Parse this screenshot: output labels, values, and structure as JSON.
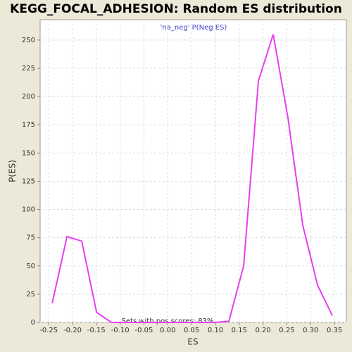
{
  "chart_data": {
    "type": "line",
    "title": "KEGG_FOCAL_ADHESION: Random ES distribution",
    "x_label": "ES",
    "y_label": "P(ES)",
    "annotation": "Sets with pos scores: 83%",
    "x": [
      -0.2426,
      -0.2116,
      -0.1806,
      -0.1495,
      -0.1185,
      -0.0875,
      -0.0565,
      -0.0254,
      0.0056,
      0.0366,
      0.0676,
      0.0987,
      0.1283,
      0.1593,
      0.1904,
      0.2214,
      0.2524,
      0.2835,
      0.3145,
      0.3455
    ],
    "series": [
      {
        "name": "'na_neg' P(Neg ES)",
        "color": "#e83ef0",
        "values": [
          17,
          76,
          72,
          9,
          0,
          0,
          0,
          0,
          0,
          0,
          0,
          0,
          1,
          50,
          214,
          255,
          181,
          86,
          33,
          6
        ]
      }
    ],
    "xlim": [
      -0.268,
      0.375
    ],
    "ylim": [
      0,
      268
    ],
    "xticks": [
      -0.25,
      {
        "value": -0.2,
        "label": "-0.20"
      },
      -0.15,
      {
        "value": -0.1,
        "label": "-0.10"
      },
      -0.05,
      {
        "value": 0,
        "label": "0.00"
      },
      0.05,
      {
        "value": 0.1,
        "label": "0.10"
      },
      0.15,
      {
        "value": 0.2,
        "label": "0.20"
      },
      0.25,
      {
        "value": 0.3,
        "label": "0.30"
      },
      0.35
    ],
    "yticks": [
      0,
      25,
      50,
      75,
      100,
      125,
      150,
      175,
      200,
      225,
      250
    ],
    "grid": true
  }
}
